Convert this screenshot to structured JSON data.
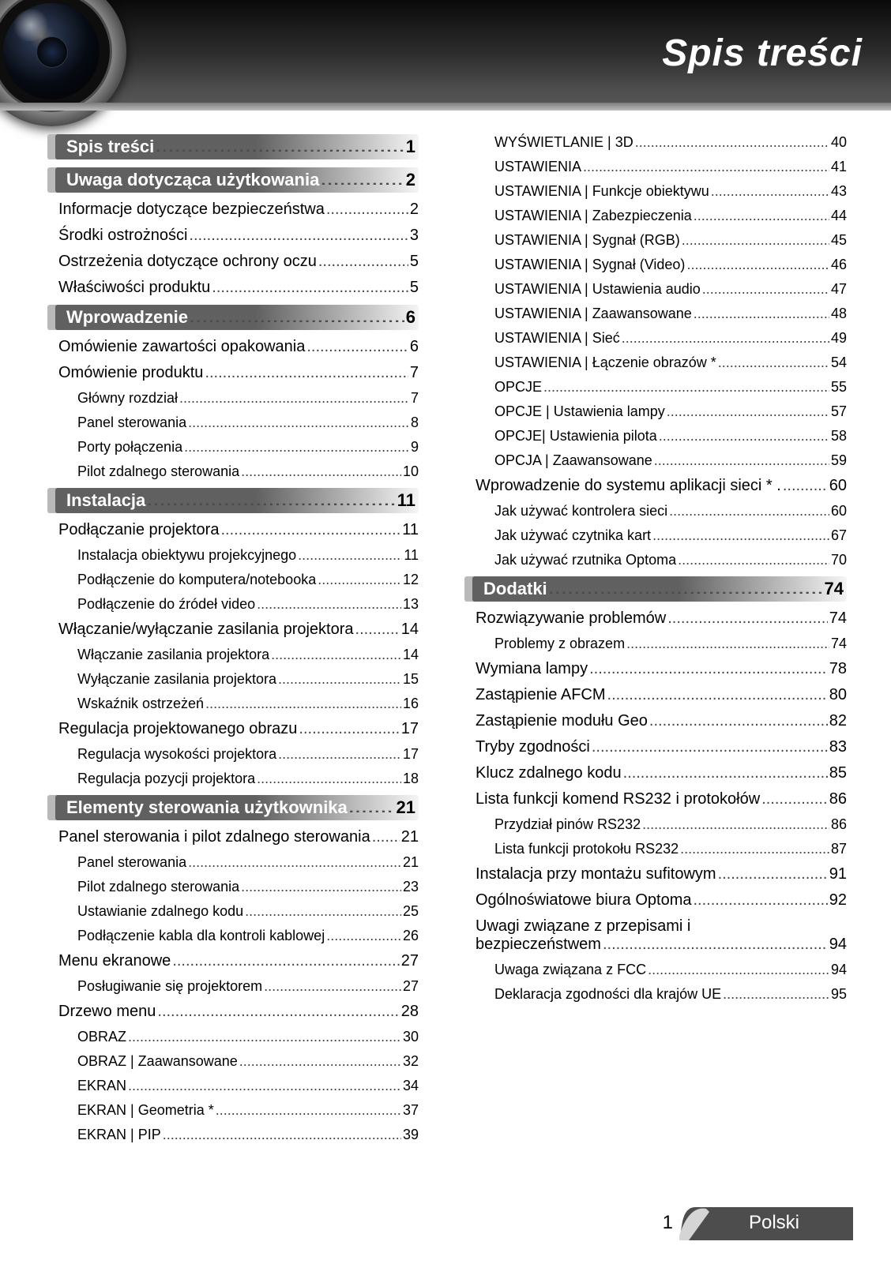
{
  "page": {
    "title": "Spis treści",
    "number": "1",
    "language_label": "Polski"
  },
  "colors": {
    "header_gradient_top": "#0a0a0a",
    "header_gradient_bottom": "#595959",
    "section_bar": "#606060",
    "section_marker": "#b9b9b9",
    "text": "#000000",
    "title_text": "#ffffff",
    "footer_tab_dark": "#4d4d4d",
    "footer_tab_light": "#d5d5d5"
  },
  "fonts": {
    "title_pt": 48,
    "section_pt": 22,
    "level1_pt": 20,
    "level2_pt": 18
  },
  "toc": {
    "left_sections": [
      {
        "type": "section",
        "label": "Spis treści",
        "page": "1"
      },
      {
        "type": "section",
        "label": "Uwaga dotycząca użytkowania",
        "page": "2"
      },
      {
        "type": "l1",
        "label": "Informacje dotyczące bezpieczeństwa",
        "page": "2"
      },
      {
        "type": "l1",
        "label": "Środki ostrożności",
        "page": "3"
      },
      {
        "type": "l1",
        "label": "Ostrzeżenia dotyczące ochrony oczu",
        "page": "5"
      },
      {
        "type": "l1",
        "label": "Właściwości produktu",
        "page": "5"
      },
      {
        "type": "section",
        "label": "Wprowadzenie",
        "page": "6"
      },
      {
        "type": "l1",
        "label": "Omówienie zawartości opakowania",
        "page": "6"
      },
      {
        "type": "l1",
        "label": "Omówienie produktu",
        "page": "7"
      },
      {
        "type": "l2",
        "label": "Główny rozdział",
        "page": "7"
      },
      {
        "type": "l2",
        "label": "Panel sterowania",
        "page": "8"
      },
      {
        "type": "l2",
        "label": "Porty połączenia",
        "page": "9"
      },
      {
        "type": "l2",
        "label": "Pilot zdalnego sterowania",
        "page": "10"
      },
      {
        "type": "section",
        "label": "Instalacja",
        "page": "11"
      },
      {
        "type": "l1",
        "label": "Podłączanie projektora",
        "page": "11"
      },
      {
        "type": "l2",
        "label": "Instalacja obiektywu projekcyjnego",
        "page": "11"
      },
      {
        "type": "l2",
        "label": "Podłączenie do komputera/notebooka",
        "page": "12"
      },
      {
        "type": "l2",
        "label": "Podłączenie do źródeł video",
        "page": "13"
      },
      {
        "type": "l1",
        "label": "Włączanie/wyłączanie zasilania projektora",
        "page": "14"
      },
      {
        "type": "l2",
        "label": "Włączanie zasilania projektora",
        "page": "14"
      },
      {
        "type": "l2",
        "label": "Wyłączanie  zasilania projektora",
        "page": "15"
      },
      {
        "type": "l2",
        "label": "Wskaźnik ostrzeżeń",
        "page": "16"
      },
      {
        "type": "l1",
        "label": "Regulacja projektowanego obrazu",
        "page": "17"
      },
      {
        "type": "l2",
        "label": "Regulacja wysokości projektora",
        "page": "17"
      },
      {
        "type": "l2",
        "label": "Regulacja pozycji projektora",
        "page": "18"
      },
      {
        "type": "section",
        "label": "Elementy sterowania użytkownika",
        "page": "21"
      },
      {
        "type": "l1",
        "label": "Panel sterowania i pilot zdalnego sterowania",
        "page": "21"
      },
      {
        "type": "l2",
        "label": "Panel sterowania",
        "page": "21"
      },
      {
        "type": "l2",
        "label": "Pilot zdalnego sterowania",
        "page": "23"
      },
      {
        "type": "l2",
        "label": "Ustawianie zdalnego kodu",
        "page": "25"
      },
      {
        "type": "l2",
        "label": "Podłączenie kabla dla kontroli kablowej",
        "page": "26"
      },
      {
        "type": "l1",
        "label": "Menu ekranowe",
        "page": "27"
      },
      {
        "type": "l2",
        "label": "Posługiwanie się projektorem",
        "page": "27"
      },
      {
        "type": "l1",
        "label": "Drzewo menu",
        "page": "28"
      },
      {
        "type": "l2",
        "label": "OBRAZ",
        "page": "30"
      },
      {
        "type": "l2",
        "label": "OBRAZ | Zaawansowane",
        "page": "32"
      },
      {
        "type": "l2",
        "label": "EKRAN",
        "page": "34"
      },
      {
        "type": "l2",
        "label": "EKRAN | Geometria *",
        "page": "37"
      },
      {
        "type": "l2",
        "label": "EKRAN | PIP",
        "page": "39"
      }
    ],
    "right_sections": [
      {
        "type": "l2",
        "label": "WYŚWIETLANIE | 3D",
        "page": "40"
      },
      {
        "type": "l2",
        "label": "USTAWIENIA",
        "page": "41"
      },
      {
        "type": "l2",
        "label": "USTAWIENIA | Funkcje obiektywu",
        "page": "43"
      },
      {
        "type": "l2",
        "label": "USTAWIENIA | Zabezpieczenia",
        "page": "44"
      },
      {
        "type": "l2",
        "label": "USTAWIENIA | Sygnał (RGB)",
        "page": "45"
      },
      {
        "type": "l2",
        "label": "USTAWIENIA | Sygnał (Video)",
        "page": "46"
      },
      {
        "type": "l2",
        "label": "USTAWIENIA | Ustawienia audio",
        "page": "47"
      },
      {
        "type": "l2",
        "label": "USTAWIENIA | Zaawansowane",
        "page": "48"
      },
      {
        "type": "l2",
        "label": "USTAWIENIA | Sieć",
        "page": "49"
      },
      {
        "type": "l2",
        "label": "USTAWIENIA | Łączenie obrazów *",
        "page": "54"
      },
      {
        "type": "l2",
        "label": "OPCJE",
        "page": "55"
      },
      {
        "type": "l2",
        "label": "OPCJE | Ustawienia lampy",
        "page": "57"
      },
      {
        "type": "l2",
        "label": "OPCJE| Ustawienia pilota",
        "page": "58"
      },
      {
        "type": "l2",
        "label": "OPCJA | Zaawansowane",
        "page": "59"
      },
      {
        "type": "l1",
        "label": "Wprowadzenie do systemu aplikacji sieci * .",
        "page": "60"
      },
      {
        "type": "l2",
        "label": "Jak używać kontrolera sieci",
        "page": "60"
      },
      {
        "type": "l2",
        "label": "Jak używać czytnika kart",
        "page": "67"
      },
      {
        "type": "l2",
        "label": "Jak używać rzutnika Optoma",
        "page": "70"
      },
      {
        "type": "section",
        "label": "Dodatki",
        "page": "74"
      },
      {
        "type": "l1",
        "label": "Rozwiązywanie problemów",
        "page": "74"
      },
      {
        "type": "l2",
        "label": "Problemy z obrazem",
        "page": "74"
      },
      {
        "type": "l1",
        "label": "Wymiana lampy",
        "page": "78"
      },
      {
        "type": "l1",
        "label": "Zastąpienie AFCM",
        "page": "80"
      },
      {
        "type": "l1",
        "label": "Zastąpienie modułu Geo",
        "page": "82"
      },
      {
        "type": "l1",
        "label": "Tryby zgodności",
        "page": "83"
      },
      {
        "type": "l1",
        "label": "Klucz zdalnego kodu",
        "page": "85"
      },
      {
        "type": "l1",
        "label": "Lista funkcji komend RS232 i protokołów",
        "page": "86"
      },
      {
        "type": "l2",
        "label": "Przydział pinów RS232",
        "page": "86"
      },
      {
        "type": "l2",
        "label": "Lista funkcji protokołu RS232",
        "page": "87"
      },
      {
        "type": "l1",
        "label": "Instalacja przy montażu sufitowym",
        "page": "91"
      },
      {
        "type": "l1",
        "label": "Ogólnoświatowe biura Optoma",
        "page": "92"
      },
      {
        "type": "l1wrap",
        "label": "Uwagi związane z przepisami i",
        "label2": "bezpieczeństwem",
        "page": "94"
      },
      {
        "type": "l2",
        "label": "Uwaga związana z FCC",
        "page": "94"
      },
      {
        "type": "l2",
        "label": "Deklaracja zgodności dla krajów UE",
        "page": "95"
      }
    ]
  }
}
